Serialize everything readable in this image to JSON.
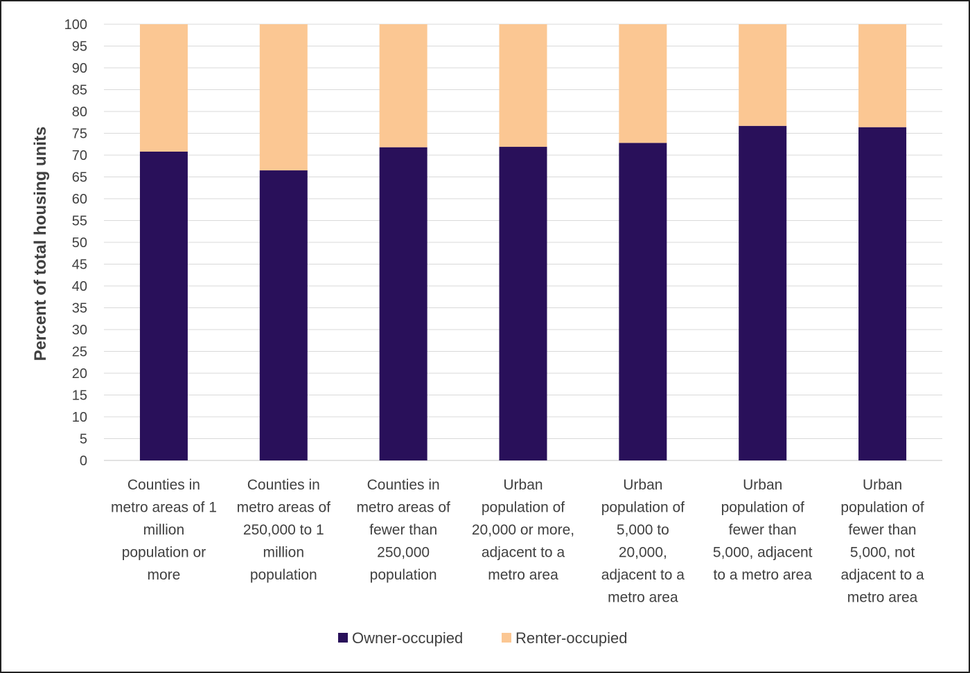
{
  "chart_data": {
    "type": "bar",
    "stacked": true,
    "categories": [
      "Counties in metro areas of 1 million population or more",
      "Counties in metro areas of 250,000 to 1 million population",
      "Counties in metro areas of fewer than 250,000 population",
      "Urban population of 20,000 or more, adjacent to a metro area",
      "Urban population of 5,000 to 20,000, adjacent to a metro area",
      "Urban population of fewer than 5,000, adjacent to a metro area",
      "Urban population of fewer than 5,000, not adjacent to a metro area"
    ],
    "category_label_lines": [
      [
        "Counties in",
        "metro areas of 1",
        "million",
        "population or",
        "more"
      ],
      [
        "Counties in",
        "metro areas of",
        "250,000 to 1",
        "million",
        "population"
      ],
      [
        "Counties in",
        "metro areas of",
        "fewer than",
        "250,000",
        "population"
      ],
      [
        "Urban",
        "population of",
        "20,000 or more,",
        "adjacent to a",
        "metro area"
      ],
      [
        "Urban",
        "population of",
        "5,000 to",
        "20,000,",
        "adjacent to a",
        "metro area"
      ],
      [
        "Urban",
        "population of",
        "fewer than",
        "5,000, adjacent",
        "to a metro area"
      ],
      [
        "Urban",
        "population of",
        "fewer than",
        "5,000, not",
        "adjacent to a",
        "metro area"
      ]
    ],
    "series": [
      {
        "name": "Owner-occupied",
        "color": "#29105a",
        "values": [
          70.8,
          66.5,
          71.8,
          71.9,
          72.8,
          76.7,
          76.4
        ]
      },
      {
        "name": "Renter-occupied",
        "color": "#fbc793",
        "values": [
          29.2,
          33.5,
          28.2,
          28.1,
          27.2,
          23.3,
          23.6
        ]
      }
    ],
    "ylabel": "Percent of total housing units",
    "xlabel": "",
    "ylim": [
      0,
      100
    ],
    "ytick_step": 5,
    "ytick_labels": [
      "0",
      "5",
      "10",
      "15",
      "20",
      "25",
      "30",
      "35",
      "40",
      "45",
      "50",
      "55",
      "60",
      "65",
      "70",
      "75",
      "80",
      "85",
      "90",
      "95",
      "100"
    ],
    "grid": true,
    "legend_position": "bottom",
    "gridline_color": "#d9d9d9",
    "axis_color": "#d9d9d9"
  }
}
